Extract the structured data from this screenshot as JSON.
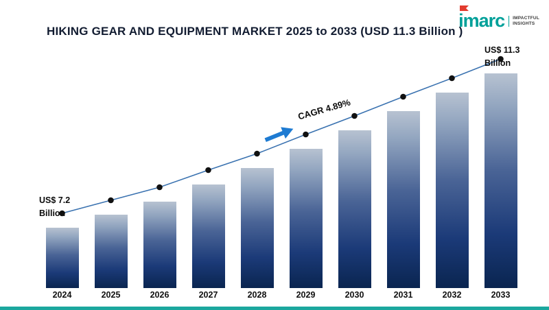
{
  "logo": {
    "wordmark": "imarc",
    "tagline_line1": "IMPACTFUL",
    "tagline_line2": "INSIGHTS",
    "teal": "#00a099",
    "red": "#e23b2e"
  },
  "annotations": {
    "start_value_line1": "US$ 7.2",
    "start_value_line2": "Billion",
    "end_value_line1": "US$ 11.3",
    "end_value_line2": "Billion",
    "cagr_label": "CAGR 4.89%",
    "arrow_color": "#1e7bd2"
  },
  "chart_data": {
    "type": "bar",
    "title": "HIKING GEAR AND EQUIPMENT MARKET 2025 to 2033 (USD 11.3 Billion )",
    "categories": [
      "2024",
      "2025",
      "2026",
      "2027",
      "2028",
      "2029",
      "2030",
      "2031",
      "2032",
      "2033"
    ],
    "values": [
      7.2,
      7.55,
      7.9,
      8.35,
      8.8,
      9.3,
      9.8,
      10.3,
      10.8,
      11.3
    ],
    "unit": "USD Billion",
    "start_label": "US$ 7.2 Billion",
    "end_label": "US$ 11.3 Billion",
    "cagr": "4.89%",
    "ylim": [
      5.6,
      11.8
    ],
    "overlay_line": true,
    "grid": false,
    "legend": "none",
    "colors": {
      "bar_gradient_top": "#b7c2d1",
      "bar_gradient_bottom": "#0a2550",
      "line": "#3a72b0",
      "dot": "#111111"
    }
  }
}
